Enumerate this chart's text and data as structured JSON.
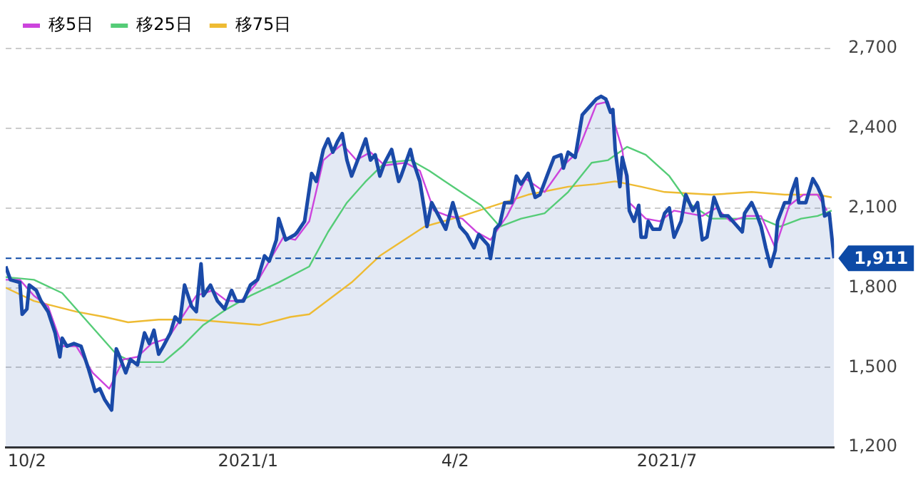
{
  "chart_data": {
    "type": "line",
    "legend": "top left",
    "grid": "y",
    "marker": "none",
    "line_style": "solid",
    "xlim": [
      "2020-09-23",
      "2021-09-10"
    ],
    "xticks": [
      {
        "value": "2020-10-02",
        "label": "10/2"
      },
      {
        "value": "2021-01-04",
        "label": "2021/1"
      },
      {
        "value": "2021-04-02",
        "label": "4/2"
      },
      {
        "value": "2021-07-01",
        "label": "2021/7"
      }
    ],
    "ylim": [
      1200,
      2700
    ],
    "yticks": [
      {
        "value": 1200,
        "label": "1,200"
      },
      {
        "value": 1500,
        "label": "1,500"
      },
      {
        "value": 1800,
        "label": "1,800"
      },
      {
        "value": 2100,
        "label": "2,100"
      },
      {
        "value": 2400,
        "label": "2,400"
      },
      {
        "value": 2700,
        "label": "2,700"
      }
    ],
    "ref_lines": [
      {
        "axis": "y",
        "value": 1911,
        "label": "1,911",
        "color": "#0d4aa6",
        "line_style": "dashed"
      }
    ],
    "series": [
      {
        "type": "area",
        "color": "#1a4aa8",
        "x": [
          "2020-09-23",
          "2020-09-25",
          "2020-09-29",
          "2020-09-30",
          "2020-10-02",
          "2020-10-03",
          "2020-10-06",
          "2020-10-08",
          "2020-10-11",
          "2020-10-14",
          "2020-10-16",
          "2020-10-17",
          "2020-10-19",
          "2020-10-22",
          "2020-10-25",
          "2020-10-28",
          "2020-10-31",
          "2020-11-02",
          "2020-11-04",
          "2020-11-07",
          "2020-11-09",
          "2020-11-10",
          "2020-11-13",
          "2020-11-15",
          "2020-11-18",
          "2020-11-21",
          "2020-11-23",
          "2020-11-25",
          "2020-11-27",
          "2020-11-29",
          "2020-12-02",
          "2020-12-04",
          "2020-12-06",
          "2020-12-08",
          "2020-12-11",
          "2020-12-13",
          "2020-12-15",
          "2020-12-16",
          "2020-12-19",
          "2020-12-22",
          "2020-12-25",
          "2020-12-28",
          "2020-12-30",
          "2021-01-02",
          "2021-01-05",
          "2021-01-08",
          "2021-01-11",
          "2021-01-13",
          "2021-01-16",
          "2021-01-17",
          "2021-01-20",
          "2021-01-24",
          "2021-01-25",
          "2021-01-28",
          "2021-01-31",
          "2021-02-02",
          "2021-02-05",
          "2021-02-07",
          "2021-02-09",
          "2021-02-11",
          "2021-02-13",
          "2021-02-15",
          "2021-02-17",
          "2021-02-20",
          "2021-02-23",
          "2021-02-25",
          "2021-02-27",
          "2021-03-01",
          "2021-03-03",
          "2021-03-06",
          "2021-03-09",
          "2021-03-10",
          "2021-03-14",
          "2021-03-15",
          "2021-03-18",
          "2021-03-20",
          "2021-03-21",
          "2021-03-23",
          "2021-03-26",
          "2021-03-29",
          "2021-04-01",
          "2021-04-04",
          "2021-04-07",
          "2021-04-10",
          "2021-04-12",
          "2021-04-14",
          "2021-04-16",
          "2021-04-17",
          "2021-04-19",
          "2021-04-21",
          "2021-04-23",
          "2021-04-26",
          "2021-04-28",
          "2021-04-30",
          "2021-05-03",
          "2021-05-06",
          "2021-05-08",
          "2021-05-11",
          "2021-05-14",
          "2021-05-17",
          "2021-05-18",
          "2021-05-20",
          "2021-05-23",
          "2021-05-26",
          "2021-05-29",
          "2021-06-01",
          "2021-06-03",
          "2021-06-05",
          "2021-06-07",
          "2021-06-08",
          "2021-06-09",
          "2021-06-11",
          "2021-06-12",
          "2021-06-14",
          "2021-06-15",
          "2021-06-17",
          "2021-06-19",
          "2021-06-20",
          "2021-06-22",
          "2021-06-23",
          "2021-06-25",
          "2021-06-28",
          "2021-06-30",
          "2021-07-02",
          "2021-07-04",
          "2021-07-07",
          "2021-07-09",
          "2021-07-12",
          "2021-07-14",
          "2021-07-16",
          "2021-07-18",
          "2021-07-21",
          "2021-07-24",
          "2021-07-27",
          "2021-07-30",
          "2021-08-02",
          "2021-08-03",
          "2021-08-06",
          "2021-08-08",
          "2021-08-10",
          "2021-08-12",
          "2021-08-14",
          "2021-08-16",
          "2021-08-17",
          "2021-08-20",
          "2021-08-22",
          "2021-08-23",
          "2021-08-25",
          "2021-08-26",
          "2021-08-29",
          "2021-09-01",
          "2021-09-03",
          "2021-09-05",
          "2021-09-06",
          "2021-09-08",
          "2021-09-10"
        ],
        "values": [
          1880,
          1830,
          1820,
          1700,
          1720,
          1810,
          1790,
          1750,
          1710,
          1630,
          1540,
          1610,
          1580,
          1590,
          1580,
          1500,
          1410,
          1420,
          1380,
          1340,
          1570,
          1550,
          1480,
          1530,
          1510,
          1630,
          1590,
          1640,
          1550,
          1580,
          1630,
          1690,
          1670,
          1810,
          1730,
          1710,
          1890,
          1770,
          1810,
          1750,
          1720,
          1790,
          1750,
          1750,
          1810,
          1830,
          1920,
          1900,
          1980,
          2060,
          1980,
          2000,
          2010,
          2050,
          2230,
          2200,
          2320,
          2360,
          2310,
          2350,
          2380,
          2280,
          2220,
          2290,
          2360,
          2280,
          2300,
          2220,
          2270,
          2320,
          2200,
          2220,
          2320,
          2280,
          2200,
          2090,
          2030,
          2120,
          2070,
          2020,
          2120,
          2030,
          2000,
          1950,
          2000,
          1980,
          1960,
          1910,
          2020,
          2040,
          2120,
          2120,
          2220,
          2190,
          2230,
          2140,
          2150,
          2220,
          2290,
          2300,
          2250,
          2310,
          2290,
          2450,
          2480,
          2510,
          2520,
          2510,
          2460,
          2470,
          2320,
          2180,
          2290,
          2220,
          2090,
          2050,
          2110,
          1990,
          1990,
          2050,
          2020,
          2020,
          2080,
          2100,
          1990,
          2050,
          2150,
          2090,
          2120,
          1980,
          1990,
          2140,
          2070,
          2070,
          2040,
          2010,
          2080,
          2120,
          2080,
          2030,
          1950,
          1880,
          1940,
          2050,
          2120,
          2120,
          2160,
          2210,
          2120,
          2120,
          2210,
          2180,
          2140,
          2070,
          2080,
          1911
        ]
      },
      {
        "type": "line",
        "name": "移5日",
        "color": "#cc44dd",
        "x": [
          "2020-09-23",
          "2020-09-29",
          "2020-10-05",
          "2020-10-11",
          "2020-10-17",
          "2020-10-23",
          "2020-10-30",
          "2020-11-06",
          "2020-11-12",
          "2020-11-18",
          "2020-11-24",
          "2020-12-01",
          "2020-12-07",
          "2020-12-13",
          "2020-12-20",
          "2020-12-26",
          "2021-01-01",
          "2021-01-07",
          "2021-01-13",
          "2021-01-19",
          "2021-01-24",
          "2021-01-30",
          "2021-02-05",
          "2021-02-13",
          "2021-02-19",
          "2021-02-25",
          "2021-03-03",
          "2021-03-12",
          "2021-03-18",
          "2021-03-24",
          "2021-03-30",
          "2021-04-05",
          "2021-04-11",
          "2021-04-17",
          "2021-04-24",
          "2021-05-02",
          "2021-05-10",
          "2021-05-18",
          "2021-05-24",
          "2021-06-01",
          "2021-06-06",
          "2021-06-12",
          "2021-06-15",
          "2021-06-22",
          "2021-06-28",
          "2021-07-04",
          "2021-07-10",
          "2021-07-16",
          "2021-07-22",
          "2021-07-28",
          "2021-08-04",
          "2021-08-10",
          "2021-08-16",
          "2021-08-22",
          "2021-08-28",
          "2021-09-03",
          "2021-09-07"
        ],
        "values": [
          1830,
          1830,
          1770,
          1730,
          1580,
          1580,
          1480,
          1420,
          1530,
          1540,
          1590,
          1610,
          1690,
          1770,
          1790,
          1750,
          1750,
          1810,
          1900,
          1990,
          1980,
          2050,
          2280,
          2340,
          2280,
          2310,
          2260,
          2270,
          2240,
          2090,
          2070,
          2060,
          2010,
          1980,
          2070,
          2210,
          2160,
          2260,
          2310,
          2490,
          2500,
          2320,
          2120,
          2060,
          2050,
          2090,
          2080,
          2070,
          2100,
          2050,
          2070,
          2070,
          1950,
          2110,
          2150,
          2150,
          2090
        ]
      },
      {
        "type": "line",
        "name": "移25日",
        "color": "#55cc77",
        "x": [
          "2020-09-23",
          "2020-10-05",
          "2020-10-17",
          "2020-10-30",
          "2020-11-09",
          "2020-11-16",
          "2020-11-29",
          "2020-12-07",
          "2020-12-16",
          "2020-12-26",
          "2021-01-05",
          "2021-01-17",
          "2021-01-30",
          "2021-02-07",
          "2021-02-15",
          "2021-02-23",
          "2021-03-03",
          "2021-03-14",
          "2021-03-22",
          "2021-04-01",
          "2021-04-13",
          "2021-04-21",
          "2021-04-30",
          "2021-05-10",
          "2021-05-20",
          "2021-05-30",
          "2021-06-06",
          "2021-06-14",
          "2021-06-22",
          "2021-07-02",
          "2021-07-10",
          "2021-07-20",
          "2021-08-01",
          "2021-08-10",
          "2021-08-18",
          "2021-08-27",
          "2021-09-03",
          "2021-09-09"
        ],
        "values": [
          1840,
          1830,
          1780,
          1650,
          1550,
          1520,
          1520,
          1580,
          1660,
          1720,
          1770,
          1820,
          1880,
          2010,
          2120,
          2200,
          2270,
          2280,
          2240,
          2180,
          2110,
          2030,
          2060,
          2080,
          2160,
          2270,
          2280,
          2330,
          2300,
          2220,
          2120,
          2060,
          2060,
          2060,
          2030,
          2060,
          2070,
          2090
        ]
      },
      {
        "type": "line",
        "name": "移75日",
        "color": "#eebb33",
        "x": [
          "2020-09-23",
          "2020-10-05",
          "2020-10-23",
          "2020-11-04",
          "2020-11-14",
          "2020-11-27",
          "2020-12-12",
          "2020-12-26",
          "2021-01-09",
          "2021-01-22",
          "2021-01-30",
          "2021-02-17",
          "2021-03-01",
          "2021-03-20",
          "2021-04-05",
          "2021-04-19",
          "2021-05-03",
          "2021-05-20",
          "2021-06-01",
          "2021-06-09",
          "2021-06-20",
          "2021-06-30",
          "2021-07-20",
          "2021-08-06",
          "2021-08-20",
          "2021-09-03",
          "2021-09-09"
        ],
        "values": [
          1800,
          1750,
          1710,
          1690,
          1670,
          1680,
          1680,
          1670,
          1660,
          1690,
          1700,
          1820,
          1920,
          2030,
          2070,
          2110,
          2150,
          2180,
          2190,
          2200,
          2180,
          2160,
          2150,
          2160,
          2150,
          2150,
          2140
        ]
      }
    ]
  }
}
